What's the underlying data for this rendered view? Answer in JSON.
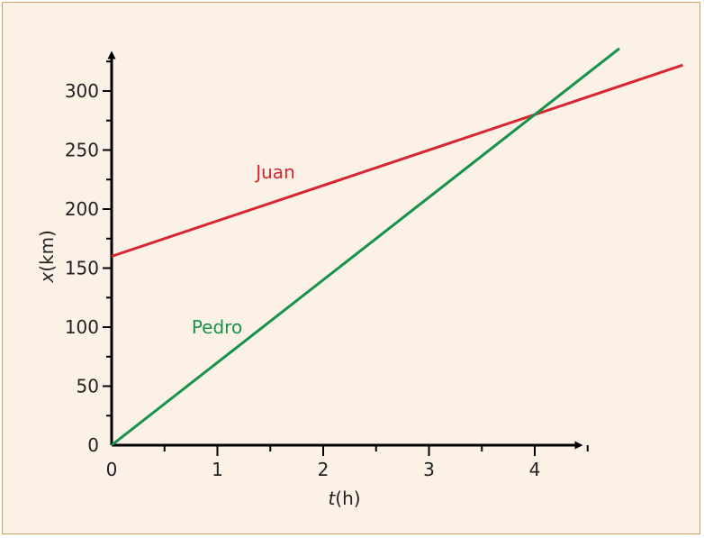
{
  "chart_data": {
    "type": "line",
    "xlabel": {
      "var": "t",
      "unit": "(h)"
    },
    "ylabel": {
      "var": "x",
      "unit": "(km)"
    },
    "xlim": [
      0,
      4.5
    ],
    "ylim": [
      0,
      320
    ],
    "x_ticks": [
      "0",
      "1",
      "2",
      "3",
      "4"
    ],
    "y_ticks": [
      "0",
      "50",
      "100",
      "150",
      "200",
      "250",
      "300"
    ],
    "grid": false,
    "series": [
      {
        "name": "Juan",
        "color": "#d7262f",
        "points": [
          [
            0,
            160
          ],
          [
            5.4,
            322
          ]
        ]
      },
      {
        "name": "Pedro",
        "color": "#16924a",
        "points": [
          [
            0,
            0
          ],
          [
            4.8,
            336
          ]
        ]
      }
    ]
  }
}
